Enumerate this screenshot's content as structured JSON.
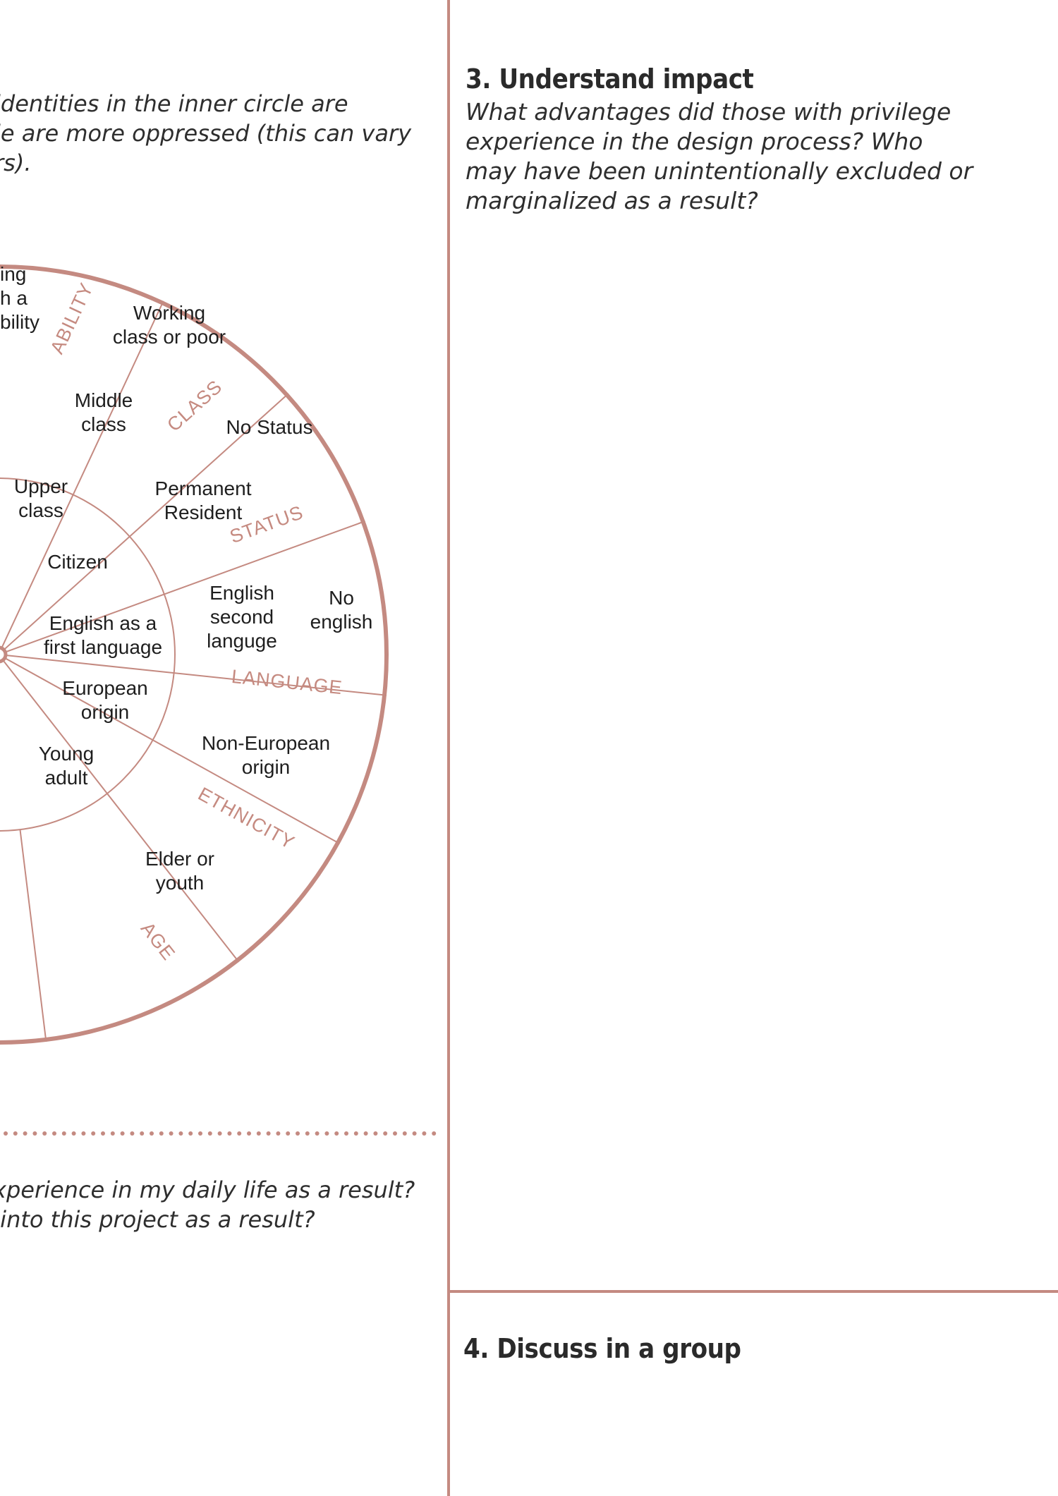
{
  "intro": {
    "text": "identities in the inner circle are\nle are more oppressed (this can vary\nrs)."
  },
  "wheel": {
    "color": "#c48a81",
    "categories": [
      "ABILITY",
      "CLASS",
      "STATUS",
      "LANGUAGE",
      "ETHNICITY",
      "AGE"
    ],
    "labels": {
      "ability_outer": "ing\nh a\nbility",
      "class_outer": "Working\nclass or poor",
      "class_middle": "Middle\nclass",
      "class_inner": "Upper\nclass",
      "status_outer": "No Status",
      "status_middle": "Permanent\nResident",
      "status_inner": "Citizen",
      "language_outer": "No\nenglish",
      "language_middle": "English\nsecond\nlanguge",
      "language_inner": "English as a\nfirst language",
      "ethnicity_inner": "European\norigin",
      "ethnicity_outer": "Non-European\norigin",
      "age_inner": "Young\nadult",
      "age_outer": "Elder or\nyouth"
    }
  },
  "question": {
    "text": "xperience in my daily life as a result?\n into this project as a result?"
  },
  "impact": {
    "heading": "3. Understand impact",
    "body": "What advantages did those with privilege\nexperience in the design process? Who\nmay have been unintentionally excluded or\nmarginalized as a result?"
  },
  "discuss": {
    "heading": "4. Discuss in a group"
  }
}
